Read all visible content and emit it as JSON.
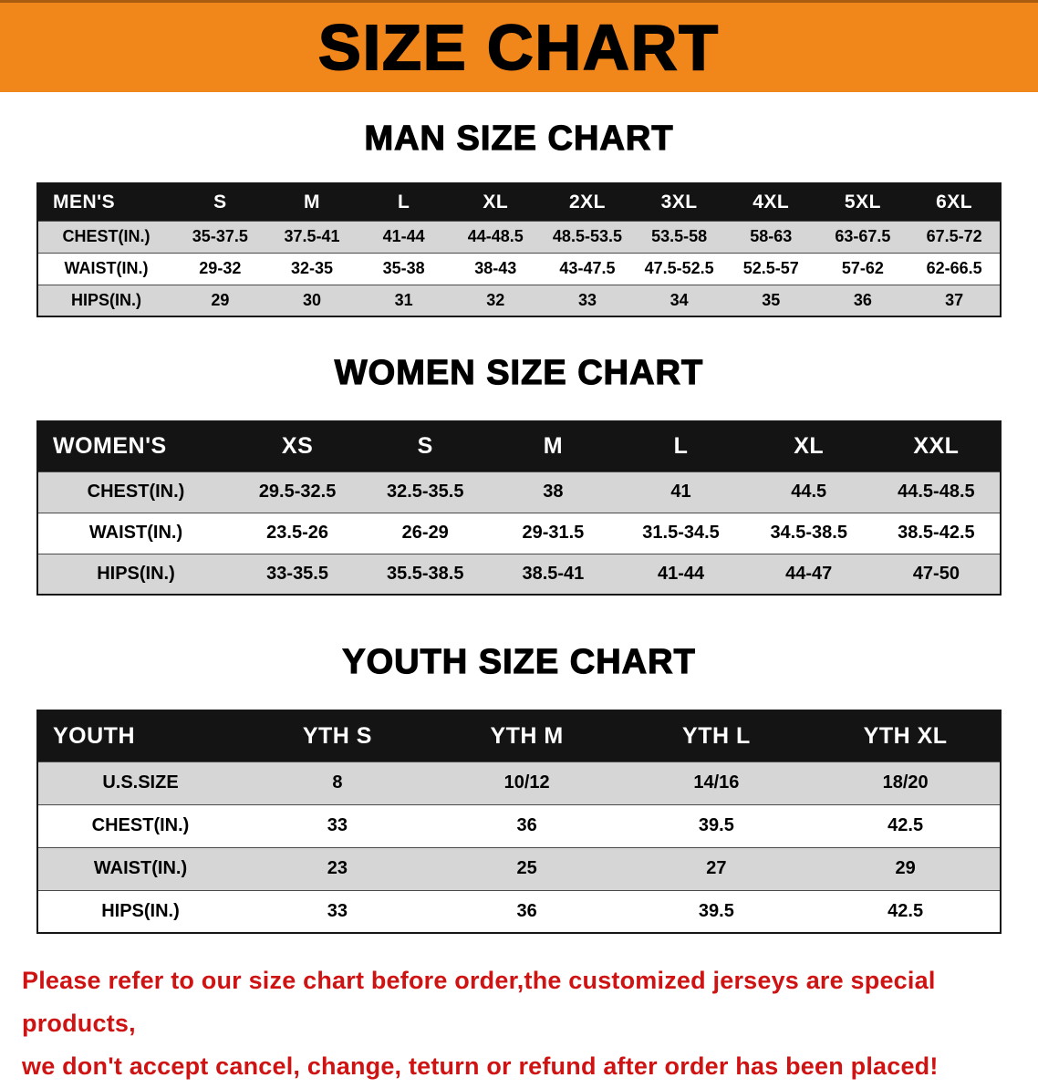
{
  "banner": {
    "title": "SIZE CHART",
    "bg_color": "#f1861b"
  },
  "chart_data": [
    {
      "type": "table",
      "title": "MAN SIZE CHART",
      "header": [
        "MEN'S",
        "S",
        "M",
        "L",
        "XL",
        "2XL",
        "3XL",
        "4XL",
        "5XL",
        "6XL"
      ],
      "rows": [
        [
          "CHEST(IN.)",
          "35-37.5",
          "37.5-41",
          "41-44",
          "44-48.5",
          "48.5-53.5",
          "53.5-58",
          "58-63",
          "63-67.5",
          "67.5-72"
        ],
        [
          "WAIST(IN.)",
          "29-32",
          "32-35",
          "35-38",
          "38-43",
          "43-47.5",
          "47.5-52.5",
          "52.5-57",
          "57-62",
          "62-66.5"
        ],
        [
          "HIPS(IN.)",
          "29",
          "30",
          "31",
          "32",
          "33",
          "34",
          "35",
          "36",
          "37"
        ]
      ]
    },
    {
      "type": "table",
      "title": "WOMEN SIZE CHART",
      "header": [
        "WOMEN'S",
        "XS",
        "S",
        "M",
        "L",
        "XL",
        "XXL"
      ],
      "rows": [
        [
          "CHEST(IN.)",
          "29.5-32.5",
          "32.5-35.5",
          "38",
          "41",
          "44.5",
          "44.5-48.5"
        ],
        [
          "WAIST(IN.)",
          "23.5-26",
          "26-29",
          "29-31.5",
          "31.5-34.5",
          "34.5-38.5",
          "38.5-42.5"
        ],
        [
          "HIPS(IN.)",
          "33-35.5",
          "35.5-38.5",
          "38.5-41",
          "41-44",
          "44-47",
          "47-50"
        ]
      ]
    },
    {
      "type": "table",
      "title": "YOUTH SIZE CHART",
      "header": [
        "YOUTH",
        "YTH S",
        "YTH M",
        "YTH L",
        "YTH XL"
      ],
      "rows": [
        [
          "U.S.SIZE",
          "8",
          "10/12",
          "14/16",
          "18/20"
        ],
        [
          "CHEST(IN.)",
          "33",
          "36",
          "39.5",
          "42.5"
        ],
        [
          "WAIST(IN.)",
          "23",
          "25",
          "27",
          "29"
        ],
        [
          "HIPS(IN.)",
          "33",
          "36",
          "39.5",
          "42.5"
        ]
      ]
    }
  ],
  "footer_note": {
    "line1": "Please refer to our size chart before order,the customized jerseys are special products,",
    "line2": "we don't accept cancel, change, teturn or refund after order has been placed!",
    "color": "#cf1212"
  }
}
